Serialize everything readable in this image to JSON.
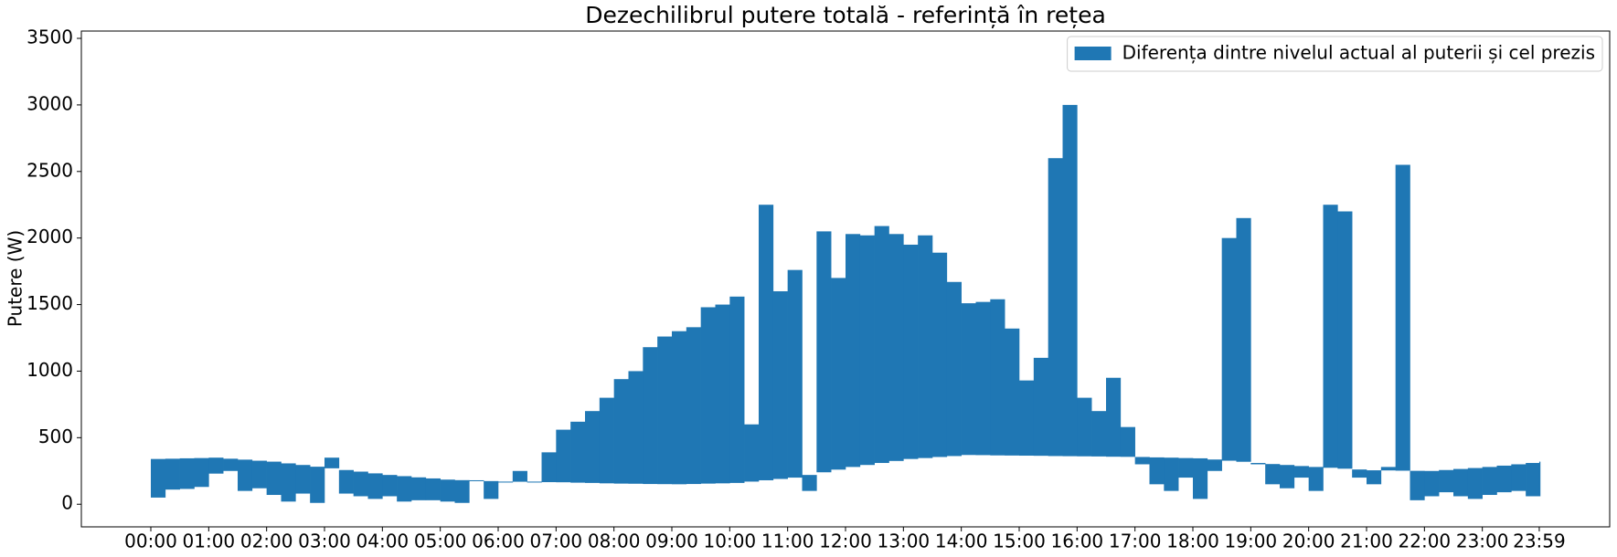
{
  "chart_data": {
    "type": "fill_between",
    "title": "Dezechilibrul putere totală - referință în rețea",
    "y_label": "Putere (W)",
    "legend": "upper right",
    "x": [
      0,
      15,
      30,
      45,
      60,
      75,
      90,
      105,
      120,
      135,
      150,
      165,
      180,
      195,
      210,
      225,
      240,
      255,
      270,
      285,
      300,
      315,
      330,
      345,
      360,
      375,
      390,
      405,
      420,
      435,
      450,
      465,
      480,
      495,
      510,
      525,
      540,
      555,
      570,
      585,
      600,
      615,
      630,
      645,
      660,
      675,
      690,
      705,
      720,
      735,
      750,
      765,
      780,
      795,
      810,
      825,
      840,
      855,
      870,
      885,
      900,
      915,
      930,
      945,
      960,
      975,
      990,
      1005,
      1020,
      1035,
      1050,
      1065,
      1080,
      1095,
      1110,
      1125,
      1140,
      1155,
      1170,
      1185,
      1200,
      1215,
      1230,
      1245,
      1260,
      1275,
      1290,
      1305,
      1320,
      1335,
      1350,
      1365,
      1380,
      1395,
      1410,
      1425,
      1439
    ],
    "series": [
      {
        "name": "Diferența dintre nivelul actual al puterii și cel prezis",
        "color": "#1f77b4",
        "values": [
          50,
          110,
          115,
          130,
          230,
          250,
          100,
          120,
          70,
          20,
          80,
          10,
          350,
          80,
          60,
          40,
          60,
          20,
          30,
          30,
          20,
          10,
          180,
          40,
          170,
          250,
          170,
          390,
          560,
          620,
          700,
          800,
          940,
          1000,
          1180,
          1260,
          1300,
          1330,
          1480,
          1500,
          1560,
          600,
          2250,
          1600,
          1760,
          100,
          2050,
          1700,
          2030,
          2020,
          2090,
          2030,
          1950,
          2020,
          1890,
          1670,
          1510,
          1520,
          1540,
          1320,
          930,
          1100,
          2600,
          3000,
          800,
          700,
          950,
          580,
          300,
          150,
          100,
          200,
          40,
          250,
          2000,
          2150,
          300,
          150,
          120,
          200,
          100,
          2250,
          2200,
          200,
          150,
          280,
          2550,
          30,
          60,
          90,
          60,
          40,
          70,
          90,
          100,
          60,
          60
        ],
        "base": [
          340,
          342,
          345,
          347,
          350,
          342,
          335,
          327,
          320,
          307,
          295,
          282,
          270,
          257,
          245,
          232,
          220,
          211,
          202,
          194,
          185,
          181,
          177,
          174,
          170,
          169,
          167,
          166,
          165,
          162,
          160,
          157,
          155,
          154,
          152,
          151,
          150,
          152,
          155,
          157,
          160,
          170,
          180,
          190,
          200,
          220,
          240,
          260,
          280,
          295,
          310,
          325,
          340,
          347,
          355,
          362,
          370,
          369,
          367,
          366,
          365,
          364,
          362,
          361,
          360,
          359,
          357,
          356,
          355,
          352,
          350,
          347,
          345,
          336,
          327,
          319,
          310,
          302,
          295,
          287,
          280,
          274,
          267,
          261,
          255,
          254,
          252,
          251,
          250,
          257,
          265,
          272,
          280,
          290,
          300,
          310,
          320
        ]
      }
    ],
    "xlim": [
      -72,
      1512
    ],
    "xticks": [
      {
        "value": 0,
        "label": "00:00"
      },
      {
        "value": 60,
        "label": "01:00"
      },
      {
        "value": 120,
        "label": "02:00"
      },
      {
        "value": 180,
        "label": "03:00"
      },
      {
        "value": 240,
        "label": "04:00"
      },
      {
        "value": 300,
        "label": "05:00"
      },
      {
        "value": 360,
        "label": "06:00"
      },
      {
        "value": 420,
        "label": "07:00"
      },
      {
        "value": 480,
        "label": "08:00"
      },
      {
        "value": 540,
        "label": "09:00"
      },
      {
        "value": 600,
        "label": "10:00"
      },
      {
        "value": 660,
        "label": "11:00"
      },
      {
        "value": 720,
        "label": "12:00"
      },
      {
        "value": 780,
        "label": "13:00"
      },
      {
        "value": 840,
        "label": "14:00"
      },
      {
        "value": 900,
        "label": "15:00"
      },
      {
        "value": 960,
        "label": "16:00"
      },
      {
        "value": 1020,
        "label": "17:00"
      },
      {
        "value": 1080,
        "label": "18:00"
      },
      {
        "value": 1140,
        "label": "19:00"
      },
      {
        "value": 1200,
        "label": "20:00"
      },
      {
        "value": 1260,
        "label": "21:00"
      },
      {
        "value": 1320,
        "label": "22:00"
      },
      {
        "value": 1380,
        "label": "23:00"
      },
      {
        "value": 1439,
        "label": "23:59"
      }
    ],
    "ylim": [
      -170,
      3555
    ],
    "yticks": [
      0,
      500,
      1000,
      1500,
      2000,
      2500,
      3000,
      3500
    ]
  }
}
